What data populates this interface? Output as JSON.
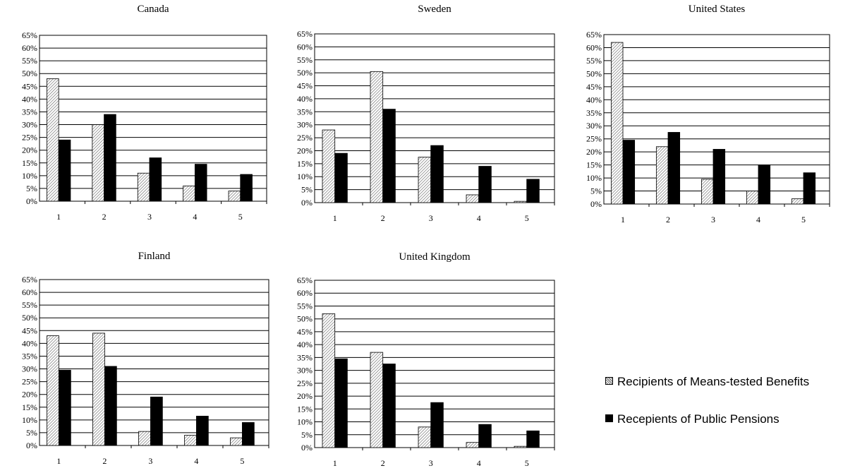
{
  "legend": {
    "means_tested": "Recipients of Means-tested Benefits",
    "pensions": "Recepients of Public Pensions"
  },
  "colors": {
    "means_tested_pattern": "hatched-gray",
    "pensions": "#000000",
    "axis": "#000000"
  },
  "chart_data": [
    {
      "type": "bar",
      "title": "Canada",
      "categories": [
        "1",
        "2",
        "3",
        "4",
        "5"
      ],
      "ylim": [
        0,
        65
      ],
      "yticks": [
        "0%",
        "5%",
        "10%",
        "15%",
        "20%",
        "25%",
        "30%",
        "35%",
        "40%",
        "45%",
        "50%",
        "55%",
        "60%",
        "65%"
      ],
      "grid": true,
      "series": [
        {
          "name": "Recipients of Means-tested Benefits",
          "values": [
            48,
            30,
            11,
            6,
            4
          ]
        },
        {
          "name": "Recepients of Public Pensions",
          "values": [
            24,
            34,
            17,
            14.5,
            10.5
          ]
        }
      ]
    },
    {
      "type": "bar",
      "title": "Sweden",
      "categories": [
        "1",
        "2",
        "3",
        "4",
        "5"
      ],
      "ylim": [
        0,
        65
      ],
      "yticks": [
        "0%",
        "5%",
        "10%",
        "15%",
        "20%",
        "25%",
        "30%",
        "35%",
        "40%",
        "45%",
        "50%",
        "55%",
        "60%",
        "65%"
      ],
      "grid": true,
      "series": [
        {
          "name": "Recipients of Means-tested Benefits",
          "values": [
            28,
            50.5,
            17.5,
            3,
            0.5
          ]
        },
        {
          "name": "Recepients of Public Pensions",
          "values": [
            19,
            36,
            22,
            14,
            9
          ]
        }
      ]
    },
    {
      "type": "bar",
      "title": "United States",
      "categories": [
        "1",
        "2",
        "3",
        "4",
        "5"
      ],
      "ylim": [
        0,
        65
      ],
      "yticks": [
        "0%",
        "5%",
        "10%",
        "15%",
        "20%",
        "25%",
        "30%",
        "35%",
        "40%",
        "45%",
        "50%",
        "55%",
        "60%",
        "65%"
      ],
      "grid": true,
      "series": [
        {
          "name": "Recipients of Means-tested Benefits",
          "values": [
            62,
            22,
            9.5,
            5,
            2
          ]
        },
        {
          "name": "Recepients of Public Pensions",
          "values": [
            24.5,
            27.5,
            21,
            15,
            12
          ]
        }
      ]
    },
    {
      "type": "bar",
      "title": "Finland",
      "categories": [
        "1",
        "2",
        "3",
        "4",
        "5"
      ],
      "ylim": [
        0,
        65
      ],
      "yticks": [
        "0%",
        "5%",
        "10%",
        "15%",
        "20%",
        "25%",
        "30%",
        "35%",
        "40%",
        "45%",
        "50%",
        "55%",
        "60%",
        "65%"
      ],
      "grid": true,
      "series": [
        {
          "name": "Recipients of Means-tested Benefits",
          "values": [
            43,
            44,
            5.5,
            4,
            3
          ]
        },
        {
          "name": "Recepients of Public Pensions",
          "values": [
            29.5,
            31,
            19,
            11.5,
            9
          ]
        }
      ]
    },
    {
      "type": "bar",
      "title": "United Kingdom",
      "categories": [
        "1",
        "2",
        "3",
        "4",
        "5"
      ],
      "ylim": [
        0,
        65
      ],
      "yticks": [
        "0%",
        "5%",
        "10%",
        "15%",
        "20%",
        "25%",
        "30%",
        "35%",
        "40%",
        "45%",
        "50%",
        "55%",
        "60%",
        "65%"
      ],
      "grid": true,
      "series": [
        {
          "name": "Recipients of Means-tested Benefits",
          "values": [
            52,
            37,
            8,
            2,
            0.5
          ]
        },
        {
          "name": "Recepients of Public Pensions",
          "values": [
            34.5,
            32.5,
            17.5,
            9,
            6.5
          ]
        }
      ]
    }
  ]
}
